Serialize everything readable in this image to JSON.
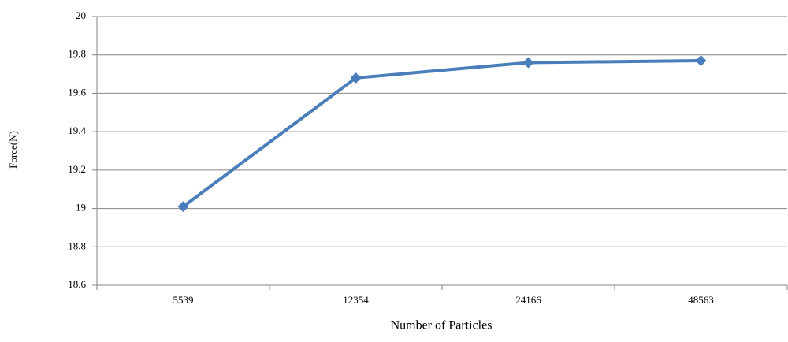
{
  "chart_data": {
    "type": "line",
    "x_label": "Number of Particles",
    "y_label": "Force(N)",
    "categories": [
      "5539",
      "12354",
      "24166",
      "48563"
    ],
    "values": [
      19.01,
      19.68,
      19.76,
      19.77
    ],
    "color": "#4a7ebb",
    "ylim": [
      18.6,
      20
    ],
    "yticks": [
      18.6,
      18.8,
      19,
      19.2,
      19.4,
      19.6,
      19.8,
      20
    ],
    "grid": true
  }
}
